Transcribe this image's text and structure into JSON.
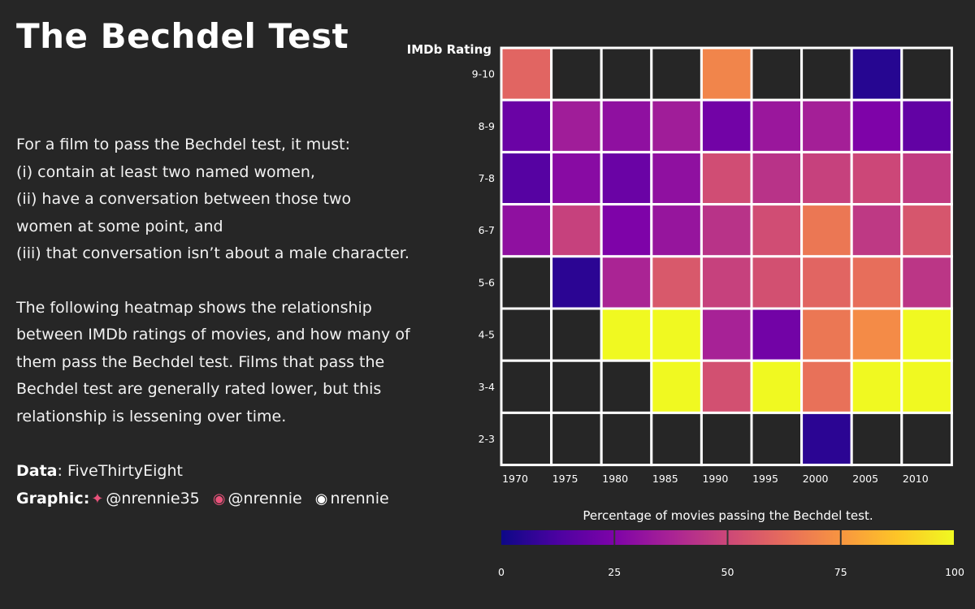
{
  "title": "The Bechdel Test",
  "description": {
    "intro": "For a film to pass the Bechdel test, it must:",
    "rules": [
      "(i) contain at least two named women,",
      "(ii) have a conversation between those two women at some point, and",
      "(iii) that conversation isn’t about a male character."
    ],
    "body": "The following heatmap shows the relationship between IMDb ratings of movies, and how many of them pass the Bechdel test. Films that pass the Bechdel test are generally rated lower, but this relationship is lessening over time."
  },
  "credits": {
    "data_label": "Data",
    "data_source": ": FiveThirtyEight",
    "graphic_label": "Graphic",
    "twitter": "@nrennie35",
    "mastodon": "@nrennie",
    "github": "nrennie",
    "accent_color": "#e8527a"
  },
  "chart_data": {
    "type": "heatmap",
    "ylabel": "IMDb Rating",
    "x": [
      "1970",
      "1975",
      "1980",
      "1985",
      "1990",
      "1995",
      "2000",
      "2005",
      "2010"
    ],
    "y": [
      "9-10",
      "8-9",
      "7-8",
      "6-7",
      "5-6",
      "4-5",
      "3-4",
      "2-3"
    ],
    "values": [
      [
        60,
        null,
        null,
        null,
        70,
        null,
        null,
        5,
        null
      ],
      [
        20,
        35,
        30,
        35,
        22,
        33,
        36,
        25,
        18
      ],
      [
        15,
        28,
        20,
        30,
        52,
        43,
        48,
        50,
        46
      ],
      [
        30,
        48,
        25,
        32,
        43,
        52,
        66,
        45,
        55
      ],
      [
        null,
        6,
        38,
        56,
        48,
        53,
        60,
        63,
        44
      ],
      [
        null,
        null,
        100,
        100,
        37,
        22,
        66,
        72,
        100
      ],
      [
        null,
        null,
        null,
        100,
        53,
        100,
        64,
        100,
        100
      ],
      [
        null,
        null,
        null,
        null,
        null,
        null,
        6,
        null,
        null
      ]
    ],
    "legend": {
      "title": "Percentage of movies passing the Bechdel test.",
      "ticks": [
        0,
        25,
        50,
        75,
        100
      ],
      "range": [
        0,
        100
      ],
      "placement": "bottom"
    },
    "colorscale": "plasma",
    "missing_color": "#262626"
  }
}
